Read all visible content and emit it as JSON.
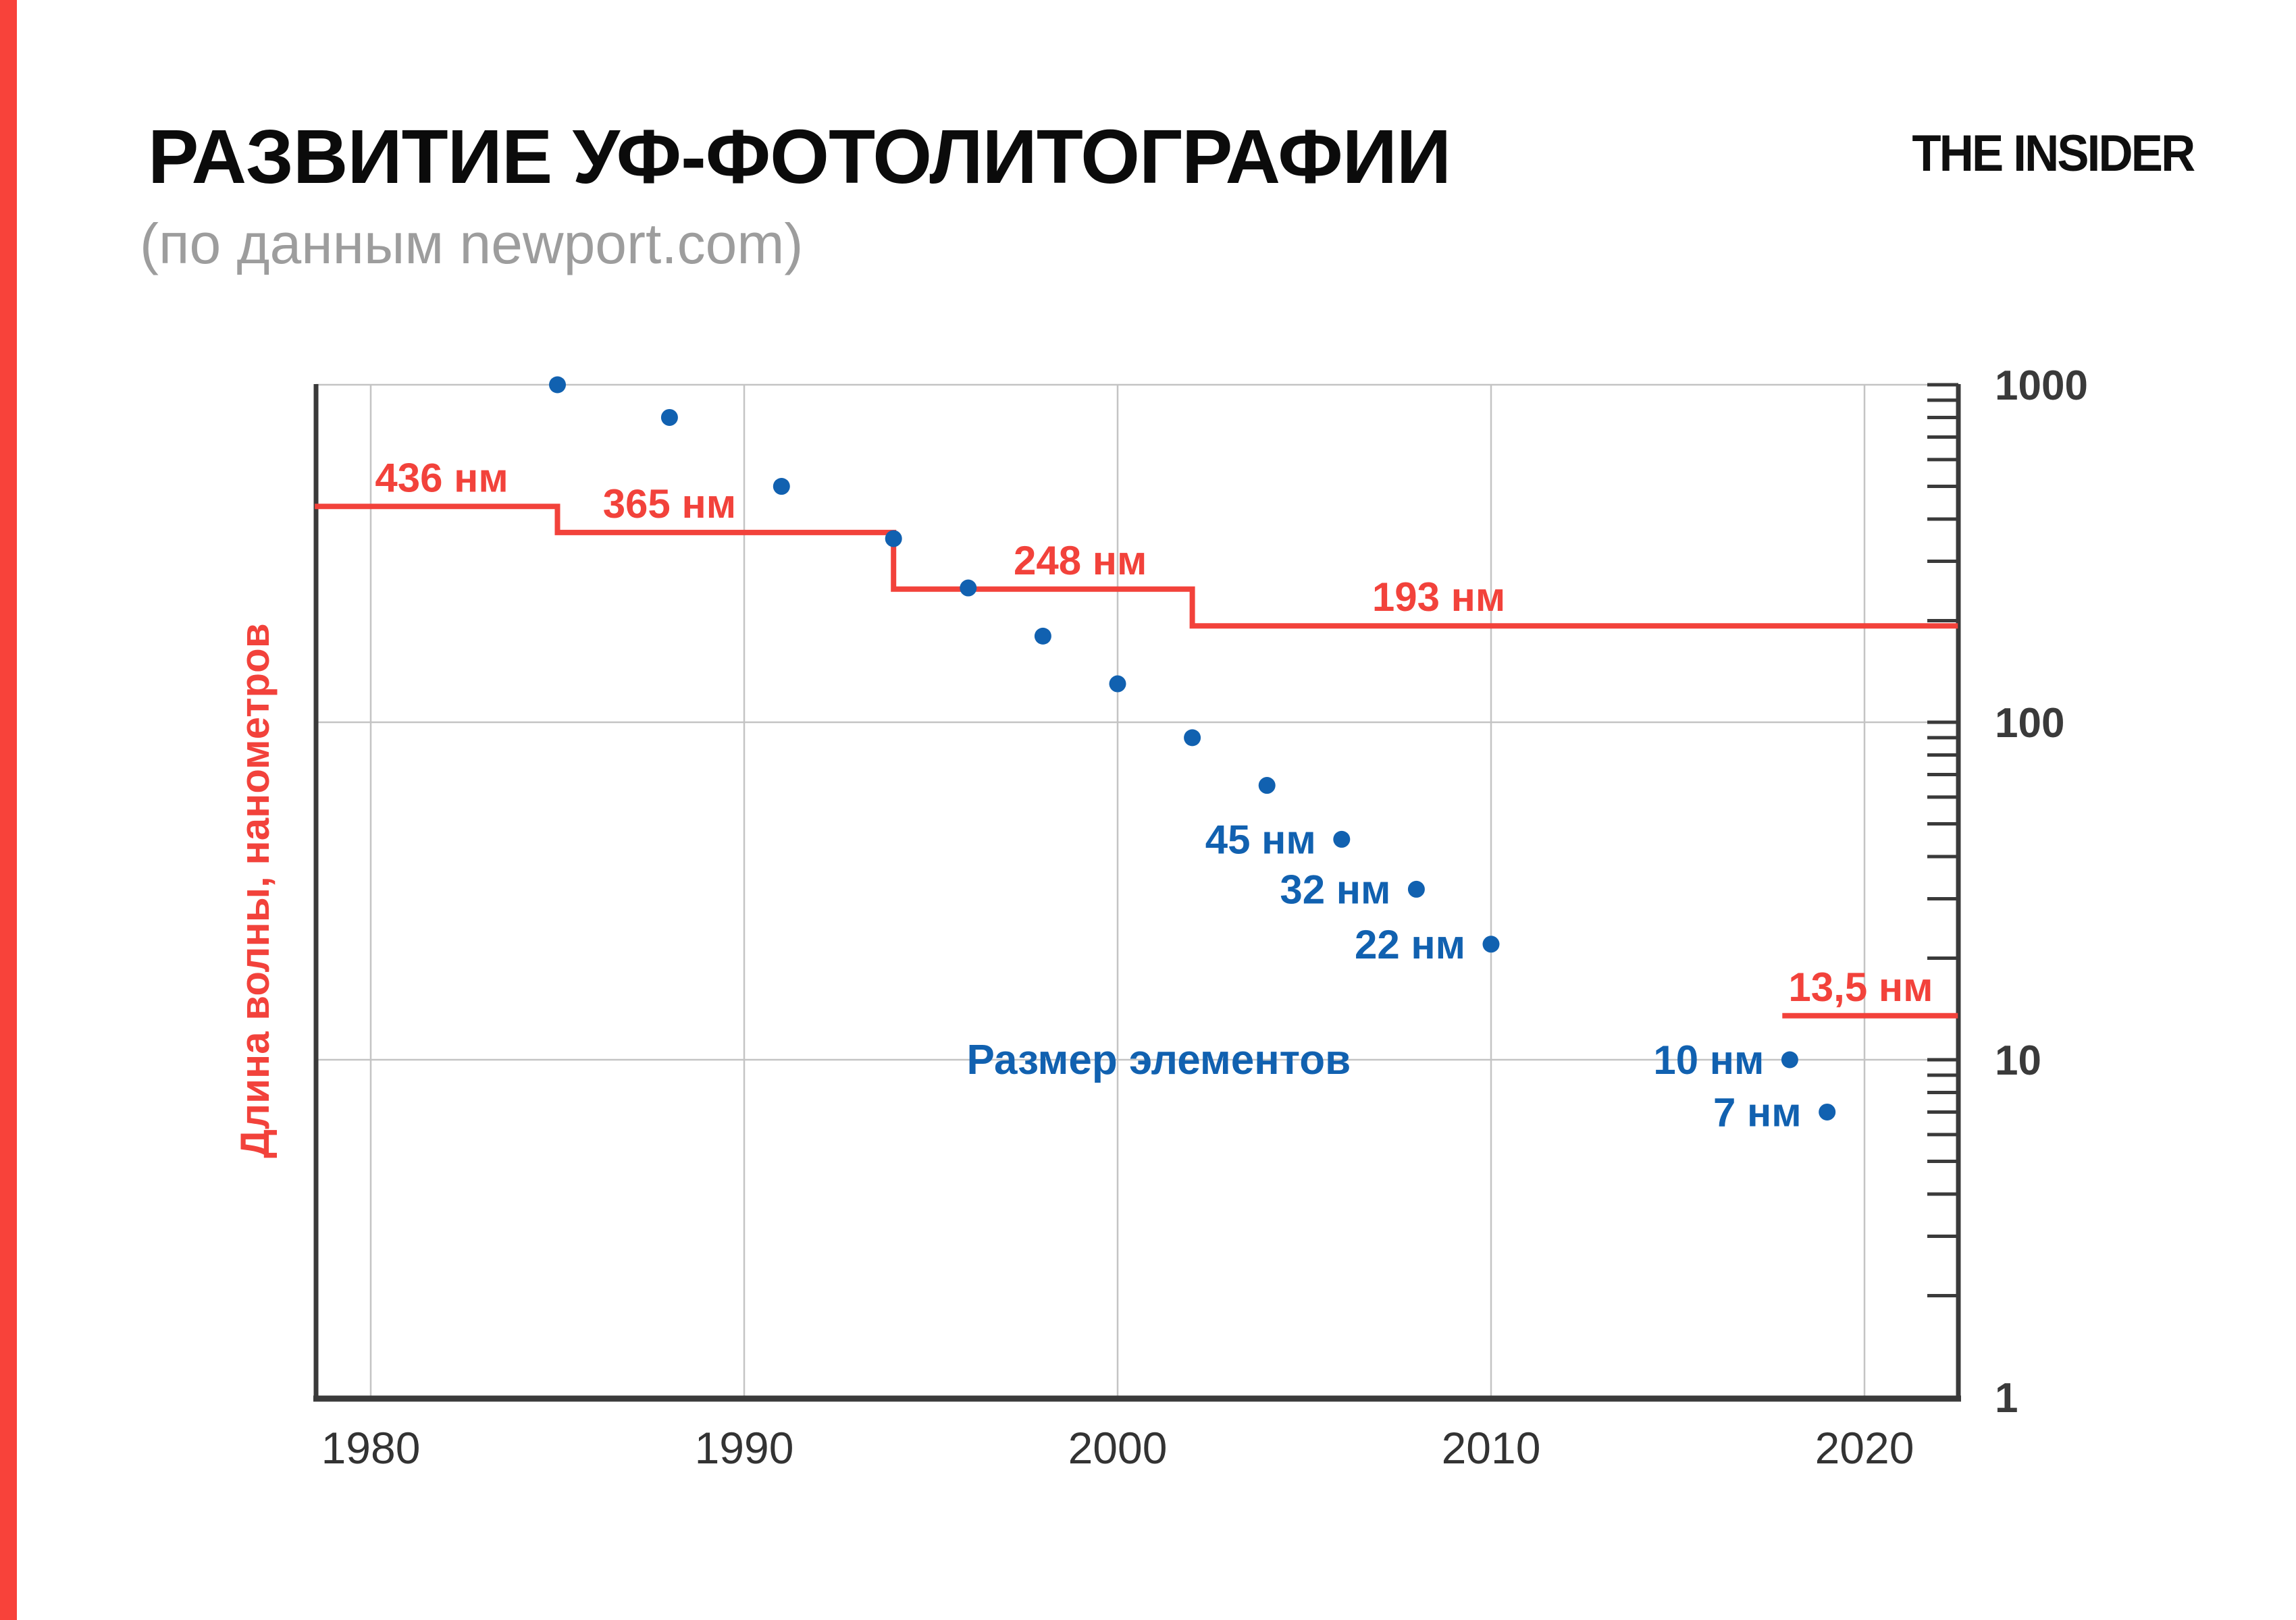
{
  "page": {
    "title": "РАЗВИТИЕ УФ-ФОТОЛИТОГРАФИИ",
    "subtitle": "(по данным newport.com)",
    "brand": "THE INSIDER",
    "accent_bar_color": "#f8423a",
    "background": "#ffffff"
  },
  "chart_data": {
    "type": "scatter",
    "title": "РАЗВИТИЕ УФ-ФОТОЛИТОГРАФИИ",
    "subtitle": "(по данным newport.com)",
    "x_axis": {
      "ticks": [
        "1980",
        "1990",
        "2000",
        "2010",
        "2020"
      ],
      "tick_years": [
        1980,
        1990,
        2000,
        2010,
        2020
      ],
      "range": [
        1978.5,
        2022.5
      ],
      "grid": true
    },
    "y_axis": {
      "label": "Длина волны, нанометров",
      "scale": "log",
      "side": "right",
      "ticks": [
        "1000",
        "100",
        "10",
        "1"
      ],
      "tick_values": [
        1000,
        100,
        10,
        1
      ],
      "range": [
        1,
        1000
      ],
      "grid": true
    },
    "series": [
      {
        "name": "Длина волны (шаги)",
        "type": "step",
        "color": "#f2423b",
        "steps": [
          {
            "label": "436 нм",
            "value": 436,
            "from": 1978.5,
            "to": 1985,
            "label_year": 1981.9
          },
          {
            "label": "365 нм",
            "value": 365,
            "from": 1985,
            "to": 1994,
            "label_year": 1988.0
          },
          {
            "label": "248 нм",
            "value": 248,
            "from": 1994,
            "to": 2002,
            "label_year": 1999.0
          },
          {
            "label": "193 нм",
            "value": 193,
            "from": 2002,
            "to": 2022.5,
            "label_year": 2008.6
          },
          {
            "label": "13,5 нм",
            "value": 13.5,
            "from": 2017.8,
            "to": 2022.5,
            "label_year": 2019.9,
            "detached": true
          }
        ]
      },
      {
        "name": "Размер элементов",
        "type": "points",
        "color": "#1161b0",
        "label_anchor": {
          "year": 2001.1,
          "value": 10
        },
        "points": [
          {
            "year": 1985,
            "size_nm": 1000
          },
          {
            "year": 1988,
            "size_nm": 800
          },
          {
            "year": 1991,
            "size_nm": 500
          },
          {
            "year": 1994,
            "size_nm": 350
          },
          {
            "year": 1996,
            "size_nm": 250
          },
          {
            "year": 1998,
            "size_nm": 180
          },
          {
            "year": 2000,
            "size_nm": 130
          },
          {
            "year": 2002,
            "size_nm": 90
          },
          {
            "year": 2004,
            "size_nm": 65
          },
          {
            "year": 2006,
            "size_nm": 45,
            "label": "45 нм"
          },
          {
            "year": 2008,
            "size_nm": 32,
            "label": "32 нм"
          },
          {
            "year": 2010,
            "size_nm": 22,
            "label": "22 нм"
          },
          {
            "year": 2018,
            "size_nm": 10,
            "label": "10 нм"
          },
          {
            "year": 2019,
            "size_nm": 7,
            "label": "7 нм"
          }
        ]
      }
    ],
    "colors": {
      "red": "#f2423b",
      "blue": "#1161b0",
      "grid": "#c4c4c4",
      "axis": "#3a3a3a",
      "x_tick_label": "#333333",
      "y_tick_label": "#3a3a3a"
    }
  }
}
